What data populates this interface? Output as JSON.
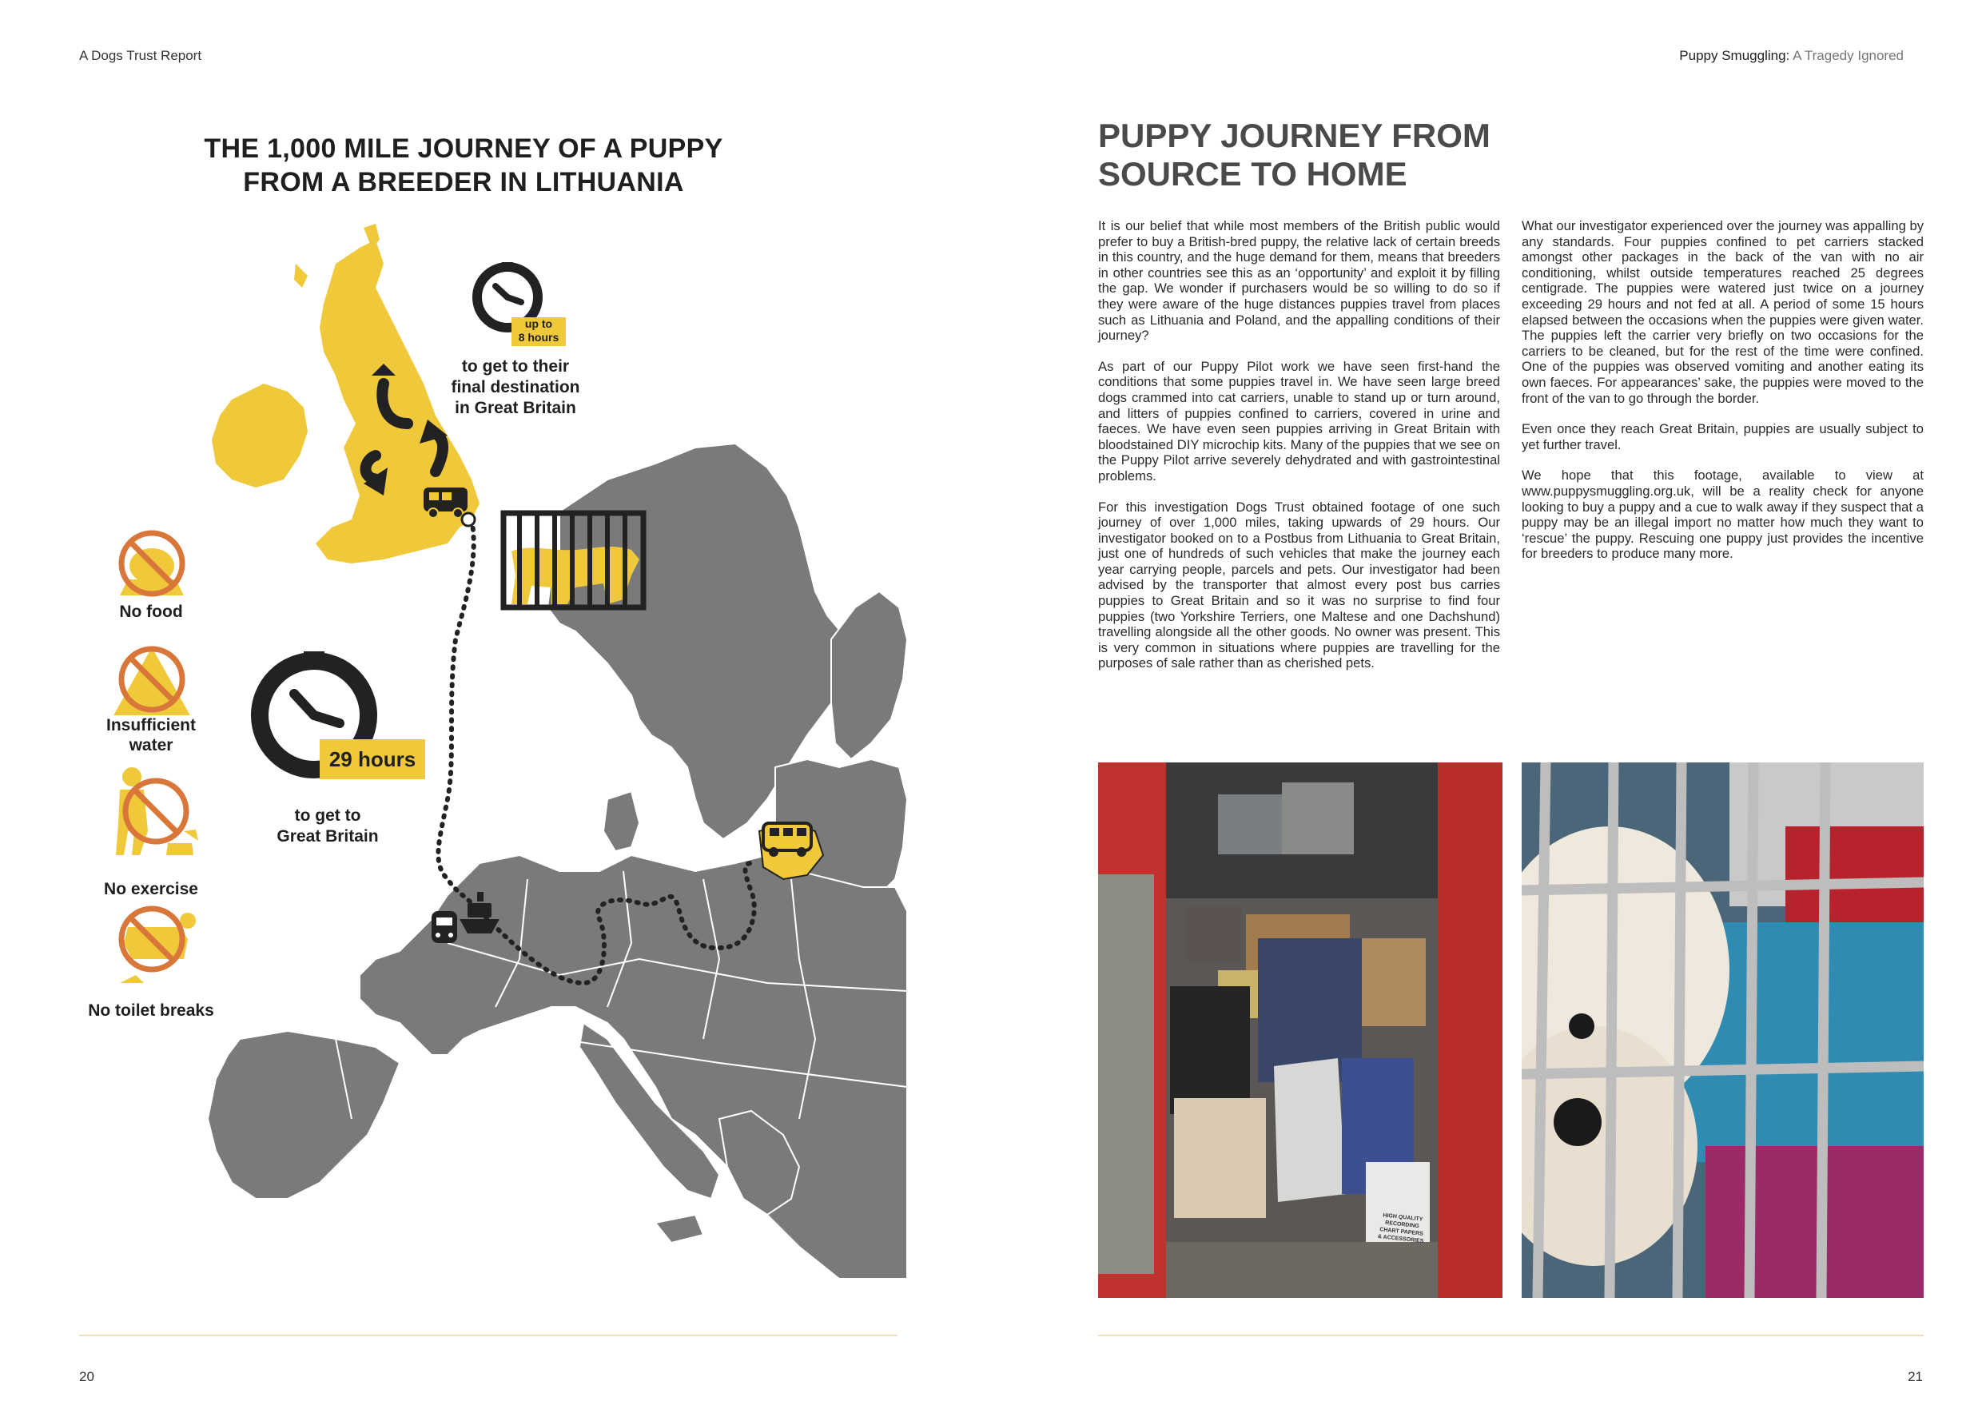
{
  "header": {
    "left": "A Dogs Trust Report",
    "right_bold": "Puppy Smuggling:",
    "right_rest": " A Tragedy Ignored"
  },
  "left_page": {
    "title_line1": "THE 1,000 MILE JOURNEY OF A PUPPY",
    "title_line2": "FROM A BREEDER IN LITHUANIA",
    "badge_small_line1": "up to",
    "badge_small_line2": "8 hours",
    "text_final_line1": "to get to their",
    "text_final_line2": "final destination",
    "text_final_line3": "in Great Britain",
    "badge_large": "29 hours",
    "text_gb_line1": "to get to",
    "text_gb_line2": "Great Britain",
    "icons": [
      {
        "label_line1": "No food",
        "label_line2": "",
        "icon": "no-food-icon"
      },
      {
        "label_line1": "Insufficient",
        "label_line2": "water",
        "icon": "no-water-icon"
      },
      {
        "label_line1": "No exercise",
        "label_line2": "",
        "icon": "no-exercise-icon"
      },
      {
        "label_line1": "No toilet breaks",
        "label_line2": "",
        "icon": "no-toilet-icon"
      }
    ],
    "page_number": "20"
  },
  "right_page": {
    "title_line1": "PUPPY JOURNEY FROM",
    "title_line2": "SOURCE TO HOME",
    "col1": [
      "It is our belief that while most members of the British public would prefer to buy a British-bred puppy, the relative lack of certain breeds in this country, and the huge demand for them, means that breeders in other countries see this as an ‘opportunity’ and exploit it by filling the gap. We wonder if purchasers would be so willing to do so if they were aware of the huge distances puppies travel from places such as Lithuania and Poland, and the appalling conditions of their journey?",
      "As part of our Puppy Pilot work we have seen first-hand the conditions that some puppies travel in. We have seen large breed dogs crammed into cat carriers, unable to stand up or turn around, and litters of puppies confined to carriers, covered in urine and faeces. We have even seen puppies arriving in Great Britain with bloodstained DIY microchip kits. Many of the puppies that we see on the Puppy Pilot arrive severely dehydrated and with gastrointestinal problems.",
      "For this investigation Dogs Trust obtained footage of one such journey of over 1,000 miles, taking upwards of 29 hours. Our investigator booked on to a Postbus from Lithuania to Great Britain, just one of hundreds of such vehicles that make the journey each year carrying people, parcels and pets. Our investigator had been advised by the transporter that almost every post bus carries puppies to Great Britain and so it was no surprise to find four puppies (two Yorkshire Terriers, one Maltese and one Dachshund) travelling alongside all the other goods. No owner was present. This is very common in situations where puppies are travelling for the purposes of sale rather than as cherished pets."
    ],
    "col2": [
      "What our investigator experienced over the journey was appalling by any standards. Four puppies confined to pet carriers stacked amongst other packages in the back of the van with no air conditioning, whilst outside temperatures reached 25 degrees centigrade. The puppies were watered just twice on a journey exceeding 29 hours and not fed at all. A period of some 15 hours elapsed between the occasions when the puppies were given water. The puppies left the carrier very briefly on two occasions for the carriers to be cleaned, but for the rest of the time were confined. One of the puppies was observed vomiting and another eating its own faeces. For appearances’ sake, the puppies were moved to the front of the van to go through the border.",
      "Even once they reach Great Britain, puppies are usually subject to yet further travel.",
      "We hope that this footage, available to view at www.puppysmuggling.org.uk, will be a reality check for anyone looking to buy a puppy and a cue to walk away if they suspect that a puppy may be an illegal import no matter how much they want to ‘rescue’ the puppy. Rescuing one puppy just provides the incentive for breeders to produce many more."
    ],
    "photo_box_text_line1": "HIGH QUALITY",
    "photo_box_text_line2": "RECORDING CHART PAPERS",
    "photo_box_text_line3": "& ACCESSORIES",
    "page_number": "21"
  },
  "colors": {
    "accent_yellow": "#f0c93b",
    "map_grey": "#7a7a7a",
    "icon_orange": "#d9773a",
    "rule": "#f3dfb0"
  }
}
